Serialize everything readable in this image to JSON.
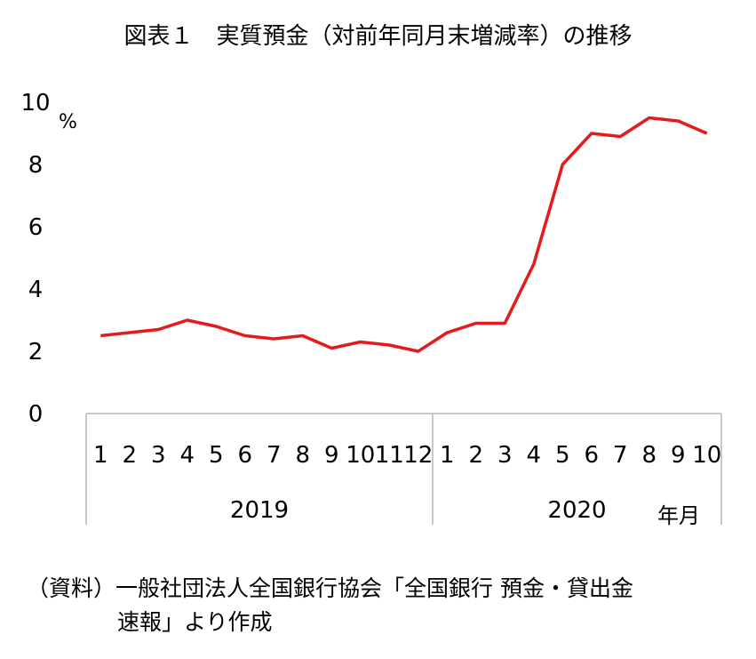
{
  "title": "図表１　実質預金（対前年同月末増減率）の推移",
  "source_line1": "（資料）一般社団法人全国銀行協会「全国銀行 預金・貸出金",
  "source_line2": "速報」より作成",
  "chart_data": {
    "type": "line",
    "ylabel": "%",
    "xlabel": "年月",
    "ylim": [
      0,
      10
    ],
    "yticks": [
      "0",
      "2",
      "4",
      "6",
      "8",
      "10"
    ],
    "grid": false,
    "categories": [
      "1",
      "2",
      "3",
      "4",
      "5",
      "6",
      "7",
      "8",
      "9",
      "10",
      "11",
      "12",
      "1",
      "2",
      "3",
      "4",
      "5",
      "6",
      "7",
      "8",
      "9",
      "10"
    ],
    "groups": [
      {
        "label": "2019",
        "count": 12
      },
      {
        "label": "2020",
        "count": 10
      }
    ],
    "series": [
      {
        "color": "#e41a1c",
        "values": [
          2.5,
          2.6,
          2.7,
          3.0,
          2.8,
          2.5,
          2.4,
          2.5,
          2.1,
          2.3,
          2.2,
          2.0,
          2.6,
          2.9,
          2.9,
          4.8,
          8.0,
          9.0,
          8.9,
          9.5,
          9.4,
          9.0
        ]
      }
    ]
  }
}
